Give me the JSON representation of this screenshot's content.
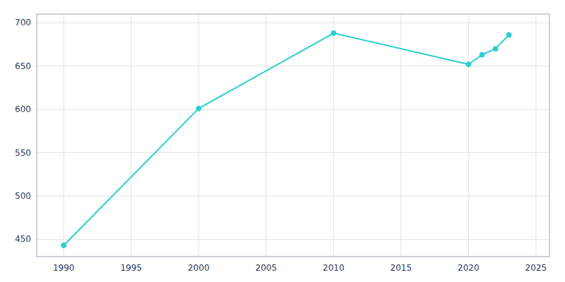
{
  "chart_data": {
    "type": "line",
    "x": [
      1990,
      2000,
      2010,
      2020,
      2021,
      2022,
      2023
    ],
    "values": [
      443,
      601,
      688,
      652,
      663,
      670,
      686
    ],
    "color": "#2ccfcf",
    "marker": "circle",
    "xlim": [
      1988,
      2026
    ],
    "ylim": [
      430,
      710
    ],
    "xticks": [
      1990,
      1995,
      2000,
      2005,
      2010,
      2015,
      2020,
      2025
    ],
    "yticks": [
      450,
      500,
      550,
      600,
      650,
      700
    ],
    "grid": true
  }
}
